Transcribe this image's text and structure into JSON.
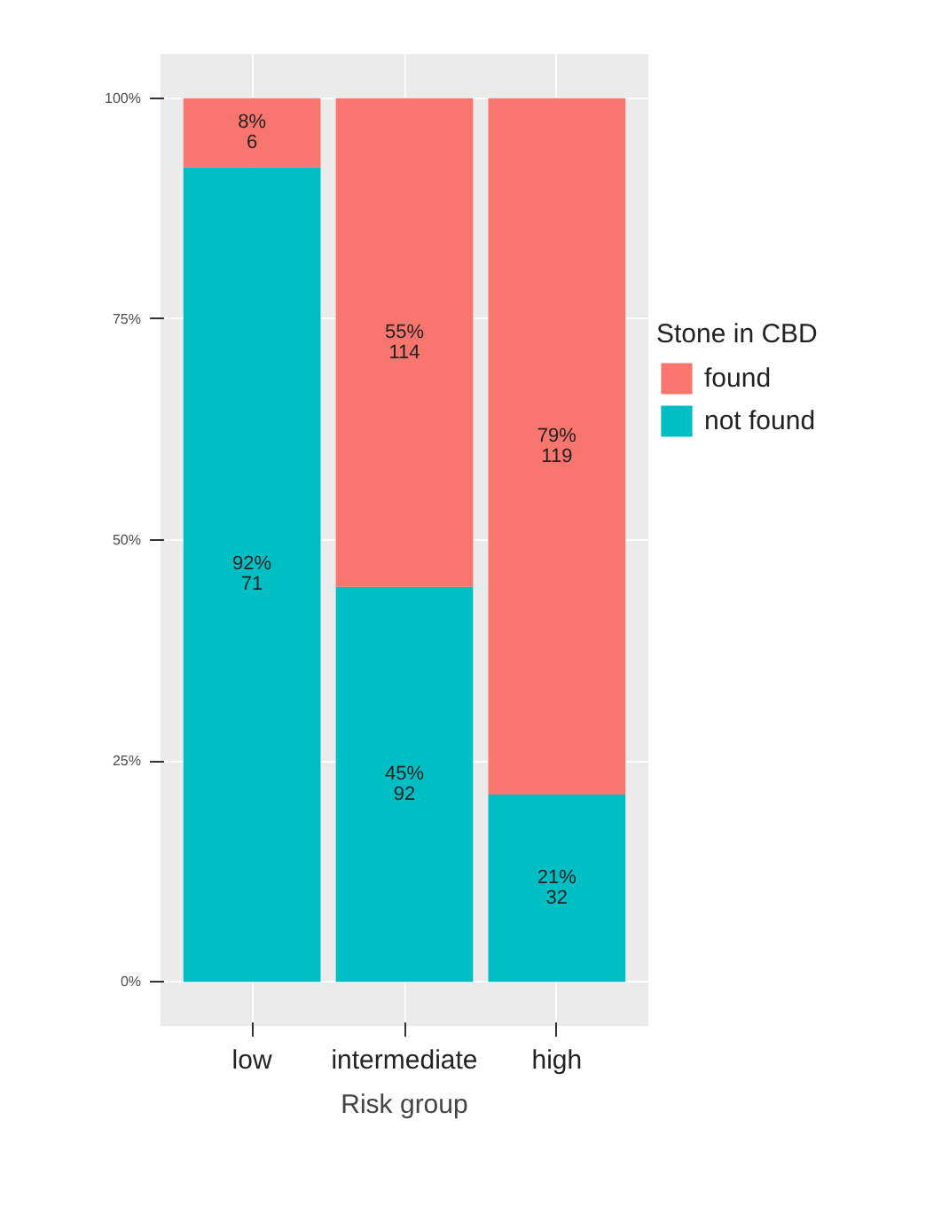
{
  "chart_data": {
    "type": "bar",
    "stacked": true,
    "xlabel": "Risk group",
    "legend_title": "Stone in CBD",
    "categories": [
      "low",
      "intermediate",
      "high"
    ],
    "series": [
      {
        "name": "not found",
        "color": "#00bfc4",
        "values": [
          92.2,
          44.7,
          21.2
        ],
        "value_labels": [
          "92%\n71",
          "45%\n92",
          "21%\n32"
        ]
      },
      {
        "name": "found",
        "color": "#f8766d",
        "values": [
          7.8,
          55.3,
          78.8
        ],
        "value_labels": [
          "8%\n6",
          "55%\n114",
          "79%\n119"
        ]
      }
    ],
    "ylim": [
      -5,
      105
    ],
    "yticks": [
      {
        "value": 0,
        "label": "0%"
      },
      {
        "value": 25,
        "label": "25%"
      },
      {
        "value": 50,
        "label": "50%"
      },
      {
        "value": 75,
        "label": "75%"
      },
      {
        "value": 100,
        "label": "100%"
      }
    ],
    "grid": true,
    "legend": "right"
  }
}
